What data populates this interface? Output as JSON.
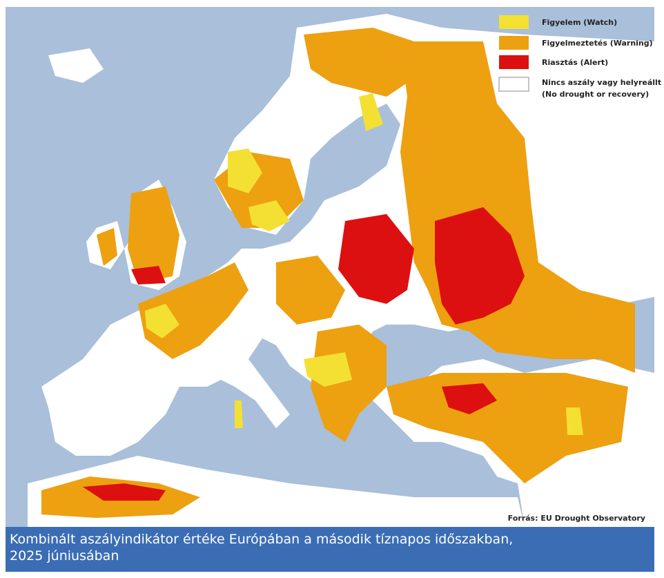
{
  "legend": {
    "items": [
      {
        "lines": [
          "Figyelem (Watch)"
        ],
        "color": "#f4e033"
      },
      {
        "lines": [
          "Figyelmeztetés (Warning)"
        ],
        "color": "#eda010"
      },
      {
        "lines": [
          "Riasztás (Alert)"
        ],
        "color": "#dc1010"
      },
      {
        "lines": [
          "Nincs aszály vagy helyreállt",
          "(No drought or recovery)"
        ],
        "color": "#ffffff"
      }
    ]
  },
  "source": "Forrás: EU Drought Observatory",
  "caption": {
    "lines": [
      "Kombinált aszályindikátor értéke Európában a második tíznapos időszakban,",
      "2025 júniusában"
    ]
  }
}
